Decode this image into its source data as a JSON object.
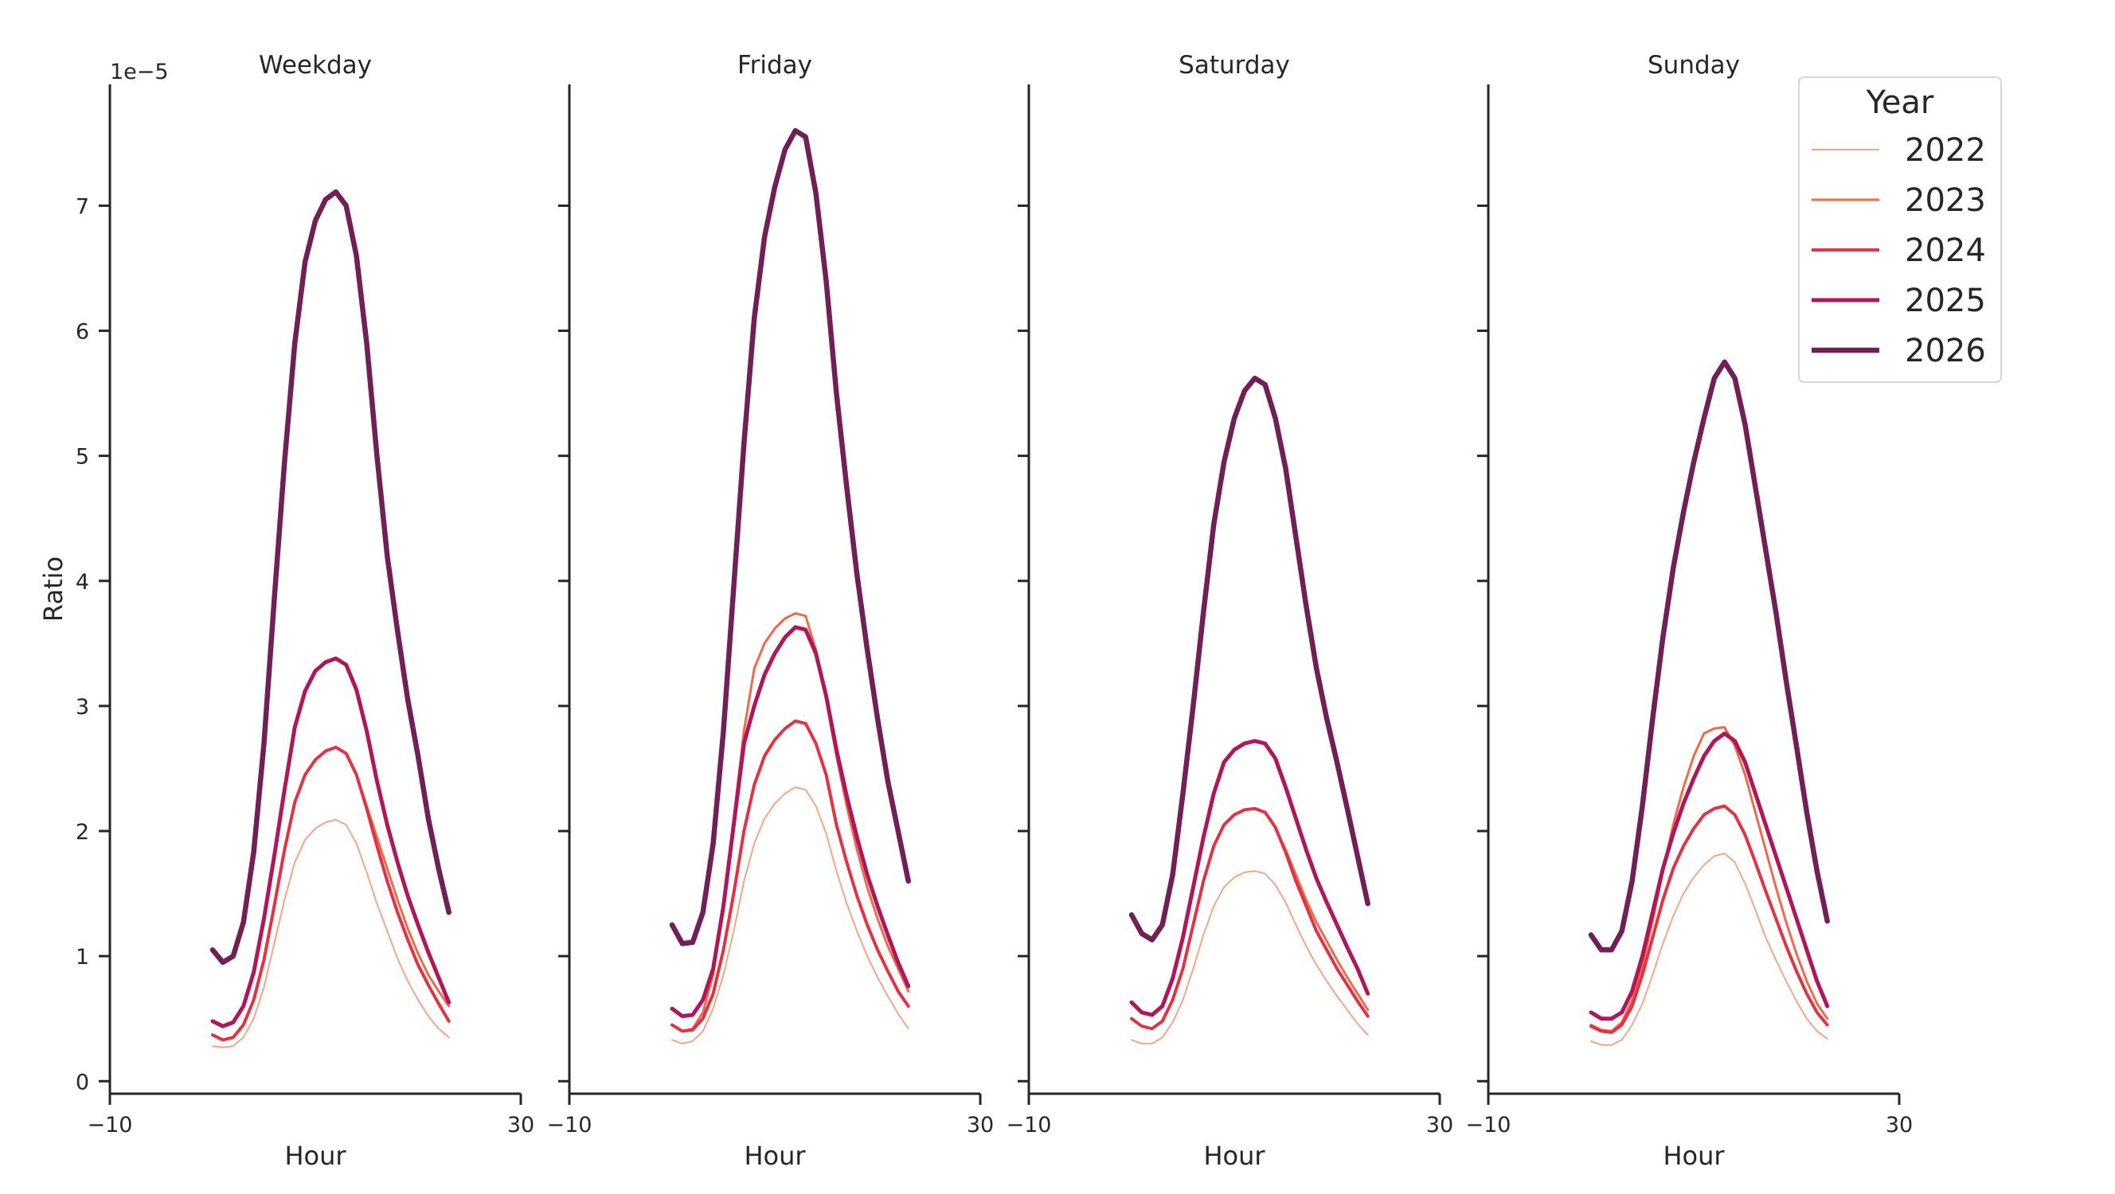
{
  "chart_data": {
    "type": "line",
    "ylabel": "Ratio",
    "y_offset_label": "1e−5",
    "xlabel": "Hour",
    "xlim": [
      -10,
      30
    ],
    "ylim": [
      -0.1,
      7.97
    ],
    "x_ticks": [
      "−10",
      "30"
    ],
    "y_ticks": [
      "0",
      "1",
      "2",
      "3",
      "4",
      "5",
      "6",
      "7"
    ],
    "y_unit_multiplier": 1e-05,
    "grid": false,
    "legend": {
      "title": "Year",
      "placement": "top-right"
    },
    "x": [
      0,
      1,
      2,
      3,
      4,
      5,
      6,
      7,
      8,
      9,
      10,
      11,
      12,
      13,
      14,
      15,
      16,
      17,
      18,
      19,
      20,
      21,
      22,
      23
    ],
    "series_meta": [
      {
        "name": "2022",
        "color": "#f4a683"
      },
      {
        "name": "2023",
        "color": "#ee6a4b"
      },
      {
        "name": "2024",
        "color": "#e13342"
      },
      {
        "name": "2025",
        "color": "#b0175a"
      },
      {
        "name": "2026",
        "color": "#701f57"
      }
    ],
    "panels": [
      {
        "title": "Weekday",
        "series": [
          {
            "name": "2022",
            "values": [
              0.28,
              0.27,
              0.28,
              0.35,
              0.5,
              0.75,
              1.1,
              1.45,
              1.75,
              1.93,
              2.02,
              2.07,
              2.09,
              2.05,
              1.9,
              1.67,
              1.42,
              1.2,
              0.98,
              0.8,
              0.65,
              0.52,
              0.42,
              0.35
            ]
          },
          {
            "name": "2023",
            "values": [
              0.37,
              0.33,
              0.35,
              0.45,
              0.65,
              0.97,
              1.4,
              1.85,
              2.23,
              2.45,
              2.57,
              2.64,
              2.67,
              2.62,
              2.45,
              2.2,
              1.95,
              1.7,
              1.45,
              1.22,
              1.02,
              0.85,
              0.72,
              0.6
            ]
          },
          {
            "name": "2024",
            "values": [
              0.37,
              0.33,
              0.35,
              0.45,
              0.65,
              0.97,
              1.4,
              1.85,
              2.23,
              2.45,
              2.57,
              2.64,
              2.67,
              2.62,
              2.45,
              2.18,
              1.88,
              1.6,
              1.35,
              1.13,
              0.93,
              0.77,
              0.62,
              0.48
            ]
          },
          {
            "name": "2025",
            "values": [
              0.48,
              0.44,
              0.47,
              0.6,
              0.87,
              1.3,
              1.8,
              2.33,
              2.83,
              3.12,
              3.28,
              3.35,
              3.38,
              3.33,
              3.13,
              2.8,
              2.4,
              2.05,
              1.75,
              1.48,
              1.25,
              1.03,
              0.83,
              0.63
            ]
          },
          {
            "name": "2026",
            "values": [
              1.05,
              0.95,
              1.0,
              1.27,
              1.83,
              2.7,
              3.85,
              4.95,
              5.9,
              6.55,
              6.88,
              7.05,
              7.11,
              7.0,
              6.6,
              5.9,
              5.0,
              4.2,
              3.6,
              3.05,
              2.6,
              2.1,
              1.7,
              1.35
            ]
          }
        ]
      },
      {
        "title": "Friday",
        "series": [
          {
            "name": "2022",
            "values": [
              0.33,
              0.3,
              0.32,
              0.4,
              0.58,
              0.85,
              1.2,
              1.6,
              1.9,
              2.1,
              2.22,
              2.3,
              2.35,
              2.33,
              2.2,
              1.98,
              1.68,
              1.42,
              1.2,
              1.0,
              0.83,
              0.68,
              0.54,
              0.42
            ]
          },
          {
            "name": "2023",
            "values": [
              0.45,
              0.4,
              0.42,
              0.55,
              0.85,
              1.4,
              2.1,
              2.8,
              3.3,
              3.5,
              3.62,
              3.7,
              3.74,
              3.72,
              3.45,
              3.05,
              2.6,
              2.2,
              1.85,
              1.55,
              1.3,
              1.08,
              0.9,
              0.72
            ]
          },
          {
            "name": "2024",
            "values": [
              0.45,
              0.4,
              0.41,
              0.5,
              0.7,
              1.05,
              1.5,
              2.0,
              2.37,
              2.6,
              2.73,
              2.82,
              2.88,
              2.86,
              2.7,
              2.45,
              2.05,
              1.75,
              1.48,
              1.25,
              1.05,
              0.88,
              0.72,
              0.6
            ]
          },
          {
            "name": "2025",
            "values": [
              0.58,
              0.52,
              0.53,
              0.65,
              0.9,
              1.4,
              2.05,
              2.7,
              3.0,
              3.25,
              3.42,
              3.55,
              3.63,
              3.61,
              3.42,
              3.08,
              2.65,
              2.28,
              1.95,
              1.65,
              1.4,
              1.17,
              0.95,
              0.76
            ]
          },
          {
            "name": "2026",
            "values": [
              1.25,
              1.1,
              1.11,
              1.35,
              1.9,
              2.8,
              3.95,
              5.1,
              6.1,
              6.75,
              7.15,
              7.45,
              7.6,
              7.55,
              7.1,
              6.4,
              5.5,
              4.75,
              4.05,
              3.45,
              2.9,
              2.4,
              2.0,
              1.6
            ]
          }
        ]
      },
      {
        "title": "Saturday",
        "series": [
          {
            "name": "2022",
            "values": [
              0.33,
              0.3,
              0.3,
              0.35,
              0.47,
              0.65,
              0.9,
              1.17,
              1.4,
              1.55,
              1.63,
              1.67,
              1.68,
              1.66,
              1.57,
              1.43,
              1.25,
              1.08,
              0.93,
              0.8,
              0.68,
              0.57,
              0.46,
              0.37
            ]
          },
          {
            "name": "2023",
            "values": [
              0.5,
              0.44,
              0.42,
              0.48,
              0.65,
              0.9,
              1.25,
              1.6,
              1.88,
              2.05,
              2.13,
              2.17,
              2.18,
              2.15,
              2.03,
              1.85,
              1.65,
              1.45,
              1.27,
              1.12,
              0.97,
              0.83,
              0.7,
              0.57
            ]
          },
          {
            "name": "2024",
            "values": [
              0.5,
              0.44,
              0.42,
              0.48,
              0.65,
              0.9,
              1.25,
              1.6,
              1.88,
              2.05,
              2.13,
              2.17,
              2.18,
              2.15,
              2.03,
              1.83,
              1.6,
              1.4,
              1.2,
              1.05,
              0.9,
              0.77,
              0.64,
              0.52
            ]
          },
          {
            "name": "2025",
            "values": [
              0.63,
              0.55,
              0.53,
              0.6,
              0.82,
              1.15,
              1.55,
              1.95,
              2.3,
              2.55,
              2.65,
              2.7,
              2.72,
              2.7,
              2.58,
              2.35,
              2.1,
              1.85,
              1.62,
              1.43,
              1.25,
              1.07,
              0.9,
              0.7
            ]
          },
          {
            "name": "2026",
            "values": [
              1.33,
              1.18,
              1.13,
              1.25,
              1.65,
              2.3,
              3.0,
              3.75,
              4.45,
              4.95,
              5.3,
              5.52,
              5.62,
              5.57,
              5.3,
              4.9,
              4.35,
              3.8,
              3.3,
              2.9,
              2.55,
              2.18,
              1.8,
              1.42
            ]
          }
        ]
      },
      {
        "title": "Sunday",
        "series": [
          {
            "name": "2022",
            "values": [
              0.32,
              0.29,
              0.29,
              0.33,
              0.45,
              0.62,
              0.85,
              1.1,
              1.32,
              1.5,
              1.63,
              1.73,
              1.8,
              1.82,
              1.75,
              1.58,
              1.37,
              1.15,
              0.97,
              0.8,
              0.64,
              0.5,
              0.4,
              0.34
            ]
          },
          {
            "name": "2023",
            "values": [
              0.45,
              0.41,
              0.4,
              0.47,
              0.65,
              0.92,
              1.28,
              1.68,
              2.05,
              2.35,
              2.6,
              2.78,
              2.82,
              2.83,
              2.68,
              2.45,
              2.15,
              1.85,
              1.55,
              1.27,
              1.02,
              0.8,
              0.62,
              0.5
            ]
          },
          {
            "name": "2024",
            "values": [
              0.44,
              0.4,
              0.39,
              0.45,
              0.6,
              0.85,
              1.15,
              1.45,
              1.7,
              1.88,
              2.02,
              2.13,
              2.18,
              2.2,
              2.13,
              1.97,
              1.75,
              1.52,
              1.3,
              1.08,
              0.88,
              0.7,
              0.55,
              0.45
            ]
          },
          {
            "name": "2025",
            "values": [
              0.55,
              0.5,
              0.5,
              0.55,
              0.72,
              1.0,
              1.35,
              1.7,
              1.98,
              2.22,
              2.42,
              2.6,
              2.72,
              2.78,
              2.72,
              2.55,
              2.3,
              2.05,
              1.8,
              1.55,
              1.3,
              1.05,
              0.8,
              0.6
            ]
          },
          {
            "name": "2026",
            "values": [
              1.17,
              1.05,
              1.05,
              1.2,
              1.6,
              2.2,
              2.9,
              3.55,
              4.1,
              4.55,
              4.95,
              5.3,
              5.62,
              5.75,
              5.62,
              5.25,
              4.75,
              4.25,
              3.75,
              3.2,
              2.68,
              2.15,
              1.68,
              1.28
            ]
          }
        ]
      }
    ]
  }
}
